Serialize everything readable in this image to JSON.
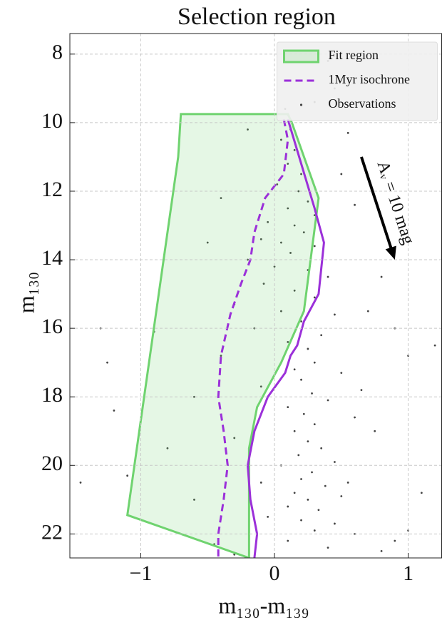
{
  "chart_data": {
    "type": "scatter",
    "title": "Selection region",
    "xlabel": "m₁₃₀-m₁₃₉",
    "ylabel": "m₁₃₀",
    "xlim": [
      -1.53,
      1.25
    ],
    "ylim": [
      22.7,
      7.4
    ],
    "xticks": [
      {
        "value": -1,
        "label": "−1"
      },
      0,
      1
    ],
    "yticks": [
      8,
      10,
      12,
      14,
      16,
      18,
      20,
      22
    ],
    "grid": true,
    "legend": "upper right",
    "series": [
      {
        "type": "area",
        "name": "Fit region",
        "color": "#6fd36f",
        "x": [
          -0.7,
          0.1,
          0.13,
          0.33,
          0.22,
          0.05,
          -0.13,
          -0.19,
          -0.19,
          -1.1,
          -0.72,
          -0.7
        ],
        "values": [
          9.75,
          9.75,
          10.0,
          12.2,
          15.5,
          17.0,
          18.3,
          19.5,
          22.7,
          21.45,
          11.0,
          9.75
        ]
      },
      {
        "type": "line",
        "color": "#9b30d9",
        "dash": false,
        "x": [
          0.1,
          0.3,
          0.37,
          0.33,
          0.22,
          0.17,
          0.12,
          0.08,
          -0.05,
          -0.15,
          -0.2,
          -0.18,
          -0.13,
          -0.15
        ],
        "values": [
          9.9,
          12.5,
          13.5,
          15.0,
          15.8,
          16.5,
          16.8,
          17.3,
          18.0,
          19.0,
          20.0,
          21.0,
          22.0,
          22.7
        ]
      },
      {
        "type": "line",
        "name": "1Myr isochrone",
        "color": "#9b30d9",
        "dash": true,
        "x": [
          0.07,
          0.1,
          0.07,
          -0.07,
          -0.15,
          -0.18,
          -0.25,
          -0.33,
          -0.4,
          -0.42,
          -0.38,
          -0.35,
          -0.38,
          -0.42,
          -0.42
        ],
        "values": [
          9.9,
          10.5,
          11.5,
          12.2,
          13.2,
          14.0,
          14.7,
          15.6,
          16.8,
          18.0,
          19.0,
          20.0,
          21.0,
          22.0,
          22.7
        ]
      },
      {
        "type": "scatter",
        "name": "Observations",
        "color": "#444444",
        "x": [
          0.08,
          0.12,
          0.05,
          0.15,
          0.1,
          0.2,
          0.02,
          0.18,
          0.25,
          0.1,
          0.3,
          -0.05,
          0.15,
          0.22,
          -0.1,
          0.05,
          0.3,
          0.12,
          -0.2,
          0.0,
          0.25,
          0.4,
          -0.08,
          0.15,
          0.3,
          -0.3,
          0.05,
          0.45,
          0.2,
          -0.15,
          0.35,
          0.1,
          0.25,
          -0.4,
          0.3,
          0.15,
          0.5,
          0.2,
          -0.1,
          0.28,
          0.4,
          0.1,
          0.22,
          0.6,
          0.3,
          0.15,
          -0.3,
          0.25,
          0.35,
          0.18,
          0.45,
          0.05,
          0.28,
          0.2,
          -0.1,
          0.38,
          0.15,
          0.5,
          0.25,
          0.1,
          0.33,
          -0.05,
          0.2,
          0.45,
          0.3,
          0.6,
          0.1,
          0.4,
          0.8,
          -0.3,
          -0.9,
          -1.3,
          -1.25,
          -1.2,
          -1.45,
          -1.1,
          -0.8,
          -0.6,
          -0.5,
          -0.4,
          0.4,
          0.45,
          0.7,
          0.9,
          1.0,
          0.8,
          1.2,
          1.1,
          1.0,
          0.75,
          0.9,
          0.6,
          0.5,
          -0.2,
          0.3,
          0.55,
          -0.6,
          -0.45,
          0.65,
          0.55
        ],
        "values": [
          9.6,
          10.2,
          10.5,
          10.8,
          11.2,
          11.5,
          11.8,
          12.0,
          12.3,
          12.5,
          12.7,
          12.9,
          13.0,
          13.2,
          13.4,
          13.5,
          13.6,
          13.8,
          14.0,
          14.2,
          14.3,
          14.5,
          14.7,
          14.9,
          15.1,
          15.3,
          15.5,
          15.6,
          15.8,
          16.0,
          16.2,
          16.4,
          16.6,
          16.8,
          17.0,
          17.2,
          17.3,
          17.5,
          17.7,
          17.9,
          18.1,
          18.3,
          18.5,
          18.6,
          18.8,
          19.0,
          19.2,
          19.3,
          19.5,
          19.7,
          19.9,
          20.0,
          20.2,
          20.4,
          20.5,
          20.6,
          20.8,
          20.9,
          21.0,
          21.2,
          21.3,
          21.5,
          21.6,
          21.7,
          21.9,
          22.0,
          22.2,
          22.4,
          22.5,
          22.6,
          16.1,
          16.0,
          17.0,
          18.4,
          20.5,
          20.3,
          19.5,
          18.0,
          13.5,
          12.2,
          8.2,
          9.0,
          15.5,
          16.0,
          16.8,
          14.5,
          16.5,
          20.8,
          21.9,
          19.0,
          22.2,
          12.4,
          11.5,
          10.2,
          9.4,
          10.3,
          21.0,
          22.3,
          17.8,
          20.5
        ]
      }
    ],
    "annotation": {
      "text": "Aᵥ = 10 mag",
      "x": [
        0.65,
        0.9
      ],
      "y": [
        11.0,
        14.0
      ]
    }
  }
}
